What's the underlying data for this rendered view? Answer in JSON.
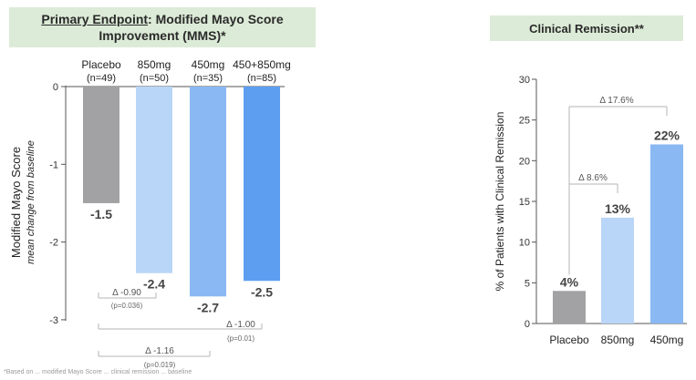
{
  "left_title": {
    "prefix": "Primary Endpoint",
    "rest": ": Modified Mayo Score Improvement (MMS)*"
  },
  "right_title": "Clinical Remission**",
  "footnote": "*Based on ... modified Mayo Score ... clinical remission ... baseline",
  "colors": {
    "placebo": "#a2a2a4",
    "mg850": "#b9d5f7",
    "mg450": "#8ab8f3",
    "combo": "#5e9ef1",
    "bracket": "#b5b5b5",
    "axis": "#555555"
  },
  "chart_data": [
    {
      "type": "bar",
      "title": "Primary Endpoint: Modified Mayo Score Improvement (MMS)*",
      "ylabel": "Modified Mayo Score",
      "ylabel_sub": "mean change from baseline",
      "ylim": [
        -3,
        0
      ],
      "yticks": [
        "0",
        "-1",
        "-2",
        "-3"
      ],
      "categories": [
        {
          "name": "Placebo",
          "n": "(n=49)"
        },
        {
          "name": "850mg",
          "n": "(n=50)"
        },
        {
          "name": "450mg",
          "n": "(n=35)"
        },
        {
          "name": "450+850mg",
          "n": "(n=85)"
        }
      ],
      "values": [
        -1.5,
        -2.4,
        -2.7,
        -2.5
      ],
      "value_labels": [
        "-1.5",
        "-2.4",
        "-2.7",
        "-2.5"
      ],
      "annotations": [
        {
          "from": 0,
          "to": 1,
          "delta": "Δ -0.90",
          "p": "(p=0.036)"
        },
        {
          "from": 0,
          "to": 3,
          "delta": "Δ -1.00",
          "p": "(p=0.01)"
        },
        {
          "from": 0,
          "to": 2,
          "delta": "Δ -1.16",
          "p": "(p=0.019)"
        }
      ]
    },
    {
      "type": "bar",
      "title": "Clinical Remission**",
      "ylabel": "% of Patients with Clinical Remission",
      "ylim": [
        0,
        30
      ],
      "yticks": [
        "0",
        "5",
        "10",
        "15",
        "20",
        "25",
        "30"
      ],
      "categories": [
        "Placebo",
        "850mg",
        "450mg"
      ],
      "values": [
        4,
        13,
        22
      ],
      "value_labels": [
        "4%",
        "13%",
        "22%"
      ],
      "annotations": [
        {
          "from": 0,
          "to": 2,
          "delta": "Δ 17.6%"
        },
        {
          "from": 0,
          "to": 1,
          "delta": "Δ 8.6%"
        }
      ]
    }
  ]
}
